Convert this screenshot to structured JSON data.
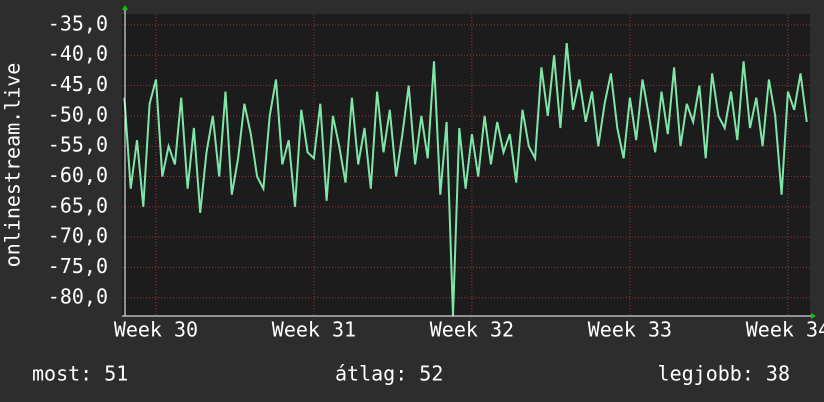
{
  "chart_data": {
    "type": "line",
    "y_label": "onlinestream.live",
    "x": [
      29.8,
      29.84,
      29.88,
      29.92,
      29.96,
      30,
      30.04,
      30.08,
      30.12,
      30.16,
      30.2,
      30.24,
      30.28,
      30.32,
      30.36,
      30.4,
      30.44,
      30.48,
      30.52,
      30.56,
      30.6,
      30.64,
      30.68,
      30.72,
      30.76,
      30.8,
      30.84,
      30.88,
      30.92,
      30.96,
      31,
      31.04,
      31.08,
      31.12,
      31.16,
      31.2,
      31.24,
      31.28,
      31.32,
      31.36,
      31.4,
      31.44,
      31.48,
      31.52,
      31.56,
      31.6,
      31.64,
      31.68,
      31.72,
      31.76,
      31.8,
      31.84,
      31.88,
      31.92,
      31.96,
      32,
      32.04,
      32.08,
      32.12,
      32.16,
      32.2,
      32.24,
      32.28,
      32.32,
      32.36,
      32.4,
      32.44,
      32.48,
      32.52,
      32.56,
      32.6,
      32.64,
      32.68,
      32.72,
      32.76,
      32.8,
      32.84,
      32.88,
      32.92,
      32.96,
      33,
      33.04,
      33.08,
      33.12,
      33.16,
      33.2,
      33.24,
      33.28,
      33.32,
      33.36,
      33.4,
      33.44,
      33.48,
      33.52,
      33.56,
      33.6,
      33.64,
      33.68,
      33.72,
      33.76,
      33.8,
      33.84,
      33.88,
      33.92,
      33.96,
      34,
      34.04,
      34.08,
      34.12
    ],
    "series": [
      {
        "name": "onlinestream.live",
        "color": "#7fe6a9",
        "values": [
          -47,
          -62,
          -54,
          -65,
          -48,
          -44,
          -60,
          -55,
          -58,
          -47,
          -62,
          -52,
          -66,
          -56,
          -50,
          -60,
          -46,
          -63,
          -57,
          -48,
          -53,
          -60,
          -62,
          -50,
          -44,
          -58,
          -54,
          -65,
          -49,
          -56,
          -57,
          -48,
          -64,
          -50,
          -55,
          -61,
          -47,
          -58,
          -52,
          -62,
          -46,
          -56,
          -49,
          -60,
          -53,
          -45,
          -58,
          -50,
          -57,
          -41,
          -63,
          -51,
          -83,
          -52,
          -62,
          -53,
          -60,
          -50,
          -58,
          -51,
          -56,
          -53,
          -61,
          -49,
          -55,
          -57,
          -42,
          -50,
          -40,
          -52,
          -38,
          -49,
          -44,
          -51,
          -46,
          -55,
          -48,
          -43,
          -52,
          -57,
          -47,
          -54,
          -44,
          -50,
          -56,
          -46,
          -53,
          -42,
          -55,
          -48,
          -51,
          -45,
          -57,
          -43,
          -50,
          -52,
          -46,
          -54,
          -41,
          -52,
          -47,
          -55,
          -44,
          -50,
          -63,
          -46,
          -49,
          -43,
          -51
        ]
      }
    ],
    "xlim": [
      29.785,
      34.14
    ],
    "ylim": [
      -83,
      -33.2
    ],
    "xticks": [
      {
        "value": 30,
        "label": "Week 30"
      },
      {
        "value": 31,
        "label": "Week 31"
      },
      {
        "value": 32,
        "label": "Week 32"
      },
      {
        "value": 33,
        "label": "Week 33"
      },
      {
        "value": 34,
        "label": "Week 34"
      }
    ],
    "yticks": [
      {
        "value": -35,
        "label": "-35,0"
      },
      {
        "value": -40,
        "label": "-40,0"
      },
      {
        "value": -45,
        "label": "-45,0"
      },
      {
        "value": -50,
        "label": "-50,0"
      },
      {
        "value": -55,
        "label": "-55,0"
      },
      {
        "value": -60,
        "label": "-60,0"
      },
      {
        "value": -65,
        "label": "-65,0"
      },
      {
        "value": -70,
        "label": "-70,0"
      },
      {
        "value": -75,
        "label": "-75,0"
      },
      {
        "value": -80,
        "label": "-80,0"
      }
    ],
    "grid": true,
    "stats": [
      "most: 51",
      "átlag: 52",
      "legjobb: 38"
    ]
  }
}
